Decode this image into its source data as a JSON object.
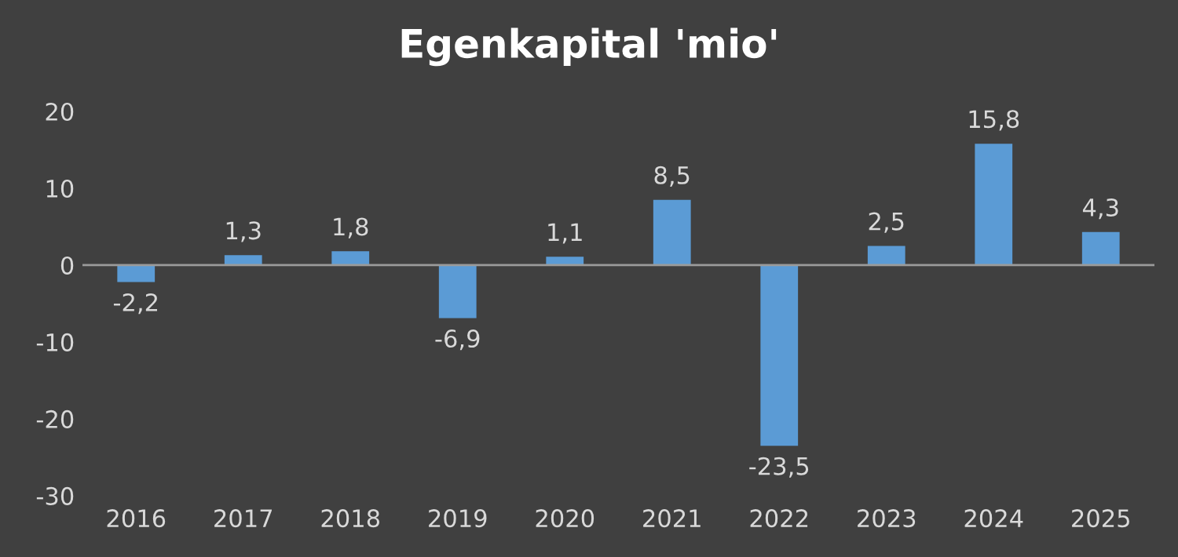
{
  "chart_data": {
    "type": "bar",
    "title": "Egenkapital 'mio'",
    "categories": [
      "2016",
      "2017",
      "2018",
      "2019",
      "2020",
      "2021",
      "2022",
      "2023",
      "2024",
      "2025"
    ],
    "values": [
      -2.2,
      1.3,
      1.8,
      -6.9,
      1.1,
      8.5,
      -23.5,
      2.5,
      15.8,
      4.3
    ],
    "value_labels": [
      "-2,2",
      "1,3",
      "1,8",
      "-6,9",
      "1,1",
      "8,5",
      "-23,5",
      "2,5",
      "15,8",
      "4,3"
    ],
    "color": "#5b9bd5",
    "ylim": [
      -30,
      20
    ],
    "yticks": [
      -30,
      -20,
      -10,
      0,
      10,
      20
    ],
    "ref_lines": [
      {
        "axis": "y",
        "value": 0,
        "color": "#9a9a9a"
      }
    ],
    "grid": false,
    "legend": false
  }
}
